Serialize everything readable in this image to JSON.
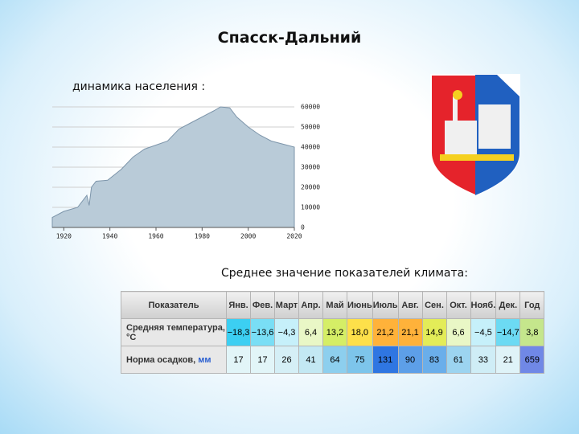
{
  "title": "Спасск-Дальний",
  "population_label": "динамика населения :",
  "chart_data": {
    "type": "area",
    "x": [
      1915,
      1920,
      1926,
      1930,
      1931,
      1932,
      1934,
      1939,
      1945,
      1950,
      1955,
      1960,
      1965,
      1970,
      1975,
      1980,
      1985,
      1988,
      1992,
      1995,
      2000,
      2005,
      2010,
      2015,
      2020
    ],
    "values": [
      5000,
      8000,
      10000,
      16000,
      11000,
      20000,
      23000,
      23500,
      29000,
      35000,
      39000,
      41000,
      43000,
      49000,
      52000,
      55000,
      58000,
      60000,
      59500,
      55000,
      50000,
      46000,
      43000,
      41500,
      40000
    ],
    "xlim": [
      1915,
      2020
    ],
    "xticks": [
      1920,
      1940,
      1960,
      1980,
      2000,
      2020
    ],
    "ylim": [
      0,
      62000
    ],
    "yticks": [
      0,
      10000,
      20000,
      30000,
      40000,
      50000,
      60000
    ],
    "color": "#b9cbd8",
    "line_color": "#7d95aa",
    "grid": true
  },
  "climate_label": "Среднее значение показателей климата:",
  "table": {
    "header": [
      "Показатель",
      "Янв.",
      "Фев.",
      "Март",
      "Апр.",
      "Май",
      "Июнь",
      "Июль",
      "Авг.",
      "Сен.",
      "Окт.",
      "Нояб.",
      "Дек.",
      "Год"
    ],
    "rows": [
      {
        "label": "Средняя температура, °C",
        "cells": [
          "−18,3",
          "−13,6",
          "−4,3",
          "6,4",
          "13,2",
          "18,0",
          "21,2",
          "21,1",
          "14,9",
          "6,6",
          "−4,5",
          "−14,7",
          "3,8"
        ],
        "colors": [
          "#3ccff2",
          "#79def5",
          "#c6f0fa",
          "#e9f7c6",
          "#d5ee66",
          "#fde04a",
          "#ffb23a",
          "#ffb23a",
          "#e3ec58",
          "#e9f7c6",
          "#c6f0fa",
          "#6cdaf3",
          "#c5e68c"
        ]
      },
      {
        "label": "Норма осадков,",
        "unit": "мм",
        "cells": [
          "17",
          "17",
          "26",
          "41",
          "64",
          "75",
          "131",
          "90",
          "83",
          "61",
          "33",
          "21",
          "659"
        ],
        "colors": [
          "#e2f5f8",
          "#e2f5f8",
          "#d5eff6",
          "#c3e8f3",
          "#8dcfee",
          "#7dc5eb",
          "#2f76e2",
          "#5d9fe8",
          "#6aaeea",
          "#9cd4f0",
          "#cfedf6",
          "#dff3f8",
          "#7088e6"
        ]
      }
    ]
  }
}
